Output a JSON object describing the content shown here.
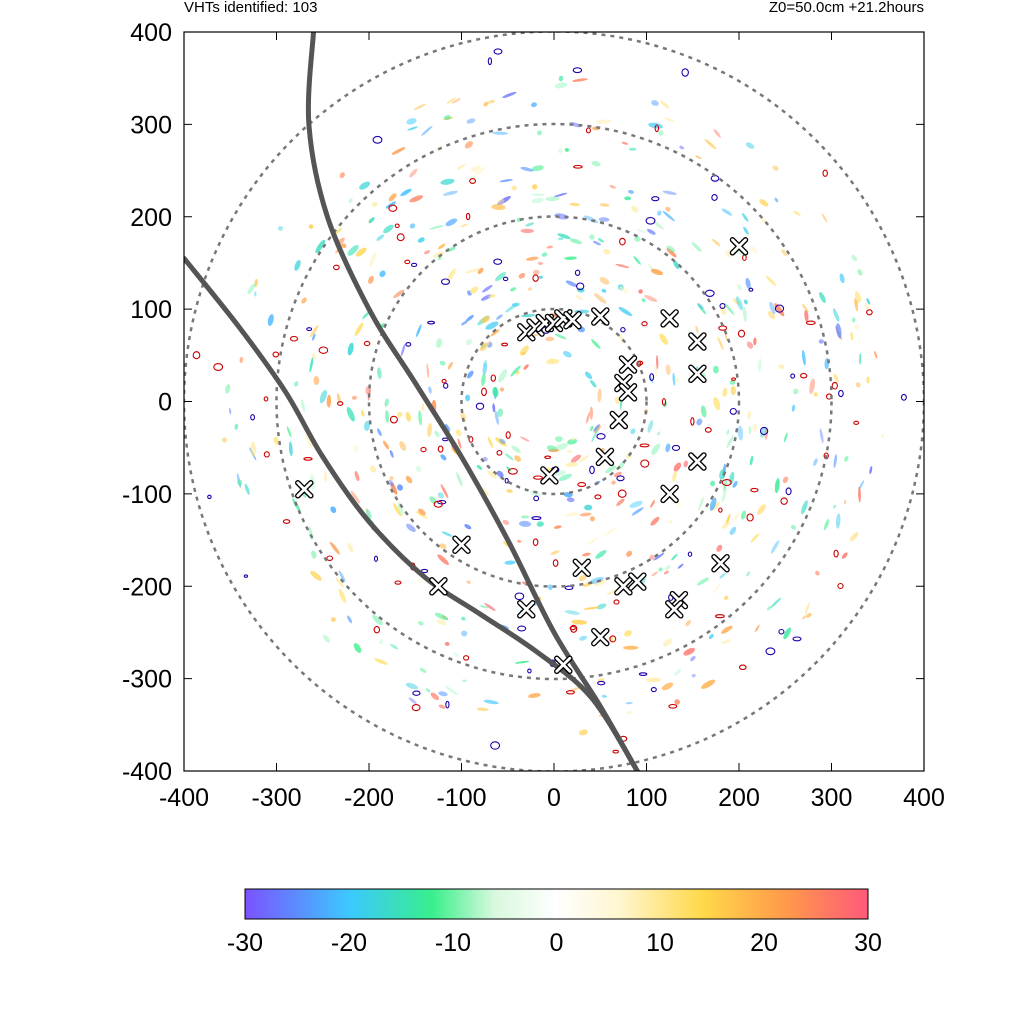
{
  "header": {
    "left": "VHTs identified: 103",
    "right": "Z0=50.0cm  +21.2hours"
  },
  "colors": {
    "ring": "#777777",
    "track": "#555555",
    "marker": "#ffffff",
    "contour_red": "#cc0000",
    "contour_blue": "#2200aa"
  },
  "chart_data": {
    "type": "scatter",
    "title": "",
    "xlabel": "",
    "ylabel": "",
    "xlim": [
      -400,
      400
    ],
    "ylim": [
      -400,
      400
    ],
    "x_ticks": [
      -400,
      -300,
      -200,
      -100,
      0,
      100,
      200,
      300,
      400
    ],
    "y_ticks": [
      -400,
      -300,
      -200,
      -100,
      0,
      100,
      200,
      300,
      400
    ],
    "x_tick_labels": [
      "-400",
      "-300",
      "-200",
      "-100",
      "0",
      "100",
      "200",
      "300",
      "400"
    ],
    "y_tick_labels": [
      "400",
      "300",
      "200",
      "100",
      "0",
      "-100",
      "-200",
      "-300",
      "-400"
    ],
    "grid": false,
    "range_rings": [
      100,
      200,
      300,
      400
    ],
    "tracks": [
      {
        "points": [
          [
            -260,
            400
          ],
          [
            -265,
            300
          ],
          [
            -245,
            200
          ],
          [
            -200,
            100
          ],
          [
            -150,
            20
          ],
          [
            -100,
            -60
          ],
          [
            -50,
            -150
          ],
          [
            0,
            -250
          ],
          [
            50,
            -330
          ],
          [
            90,
            -400
          ]
        ]
      },
      {
        "points": [
          [
            -400,
            155
          ],
          [
            -340,
            80
          ],
          [
            -290,
            10
          ],
          [
            -250,
            -60
          ],
          [
            -200,
            -130
          ],
          [
            -140,
            -190
          ],
          [
            -80,
            -230
          ],
          [
            -20,
            -270
          ],
          [
            40,
            -320
          ],
          [
            90,
            -400
          ]
        ]
      }
    ],
    "vht_markers": [
      [
        -30,
        75
      ],
      [
        -20,
        80
      ],
      [
        -10,
        85
      ],
      [
        0,
        85
      ],
      [
        10,
        90
      ],
      [
        20,
        88
      ],
      [
        50,
        92
      ],
      [
        125,
        90
      ],
      [
        155,
        65
      ],
      [
        155,
        30
      ],
      [
        80,
        40
      ],
      [
        75,
        20
      ],
      [
        80,
        10
      ],
      [
        70,
        -20
      ],
      [
        55,
        -60
      ],
      [
        155,
        -65
      ],
      [
        -5,
        -80
      ],
      [
        -270,
        -95
      ],
      [
        125,
        -100
      ],
      [
        -100,
        -155
      ],
      [
        30,
        -180
      ],
      [
        180,
        -175
      ],
      [
        -125,
        -200
      ],
      [
        75,
        -200
      ],
      [
        90,
        -195
      ],
      [
        135,
        -215
      ],
      [
        130,
        -225
      ],
      [
        -30,
        -225
      ],
      [
        50,
        -255
      ],
      [
        10,
        -285
      ],
      [
        200,
        168
      ]
    ],
    "colorbar": {
      "min": -30,
      "max": 30,
      "ticks": [
        -30,
        -20,
        -10,
        0,
        10,
        20,
        30
      ],
      "tick_labels": [
        "-30",
        "-20",
        "-10",
        "0",
        "10",
        "20",
        "30"
      ],
      "stops": [
        {
          "value": -30,
          "color": "#7b52ff"
        },
        {
          "value": -20,
          "color": "#3cc8ff"
        },
        {
          "value": -12,
          "color": "#38ef8c"
        },
        {
          "value": -6,
          "color": "#d8f8dd"
        },
        {
          "value": 0,
          "color": "#ffffff"
        },
        {
          "value": 6,
          "color": "#fff6d0"
        },
        {
          "value": 14,
          "color": "#ffd94a"
        },
        {
          "value": 22,
          "color": "#ff9a4a"
        },
        {
          "value": 30,
          "color": "#ff5a7a"
        }
      ]
    }
  }
}
